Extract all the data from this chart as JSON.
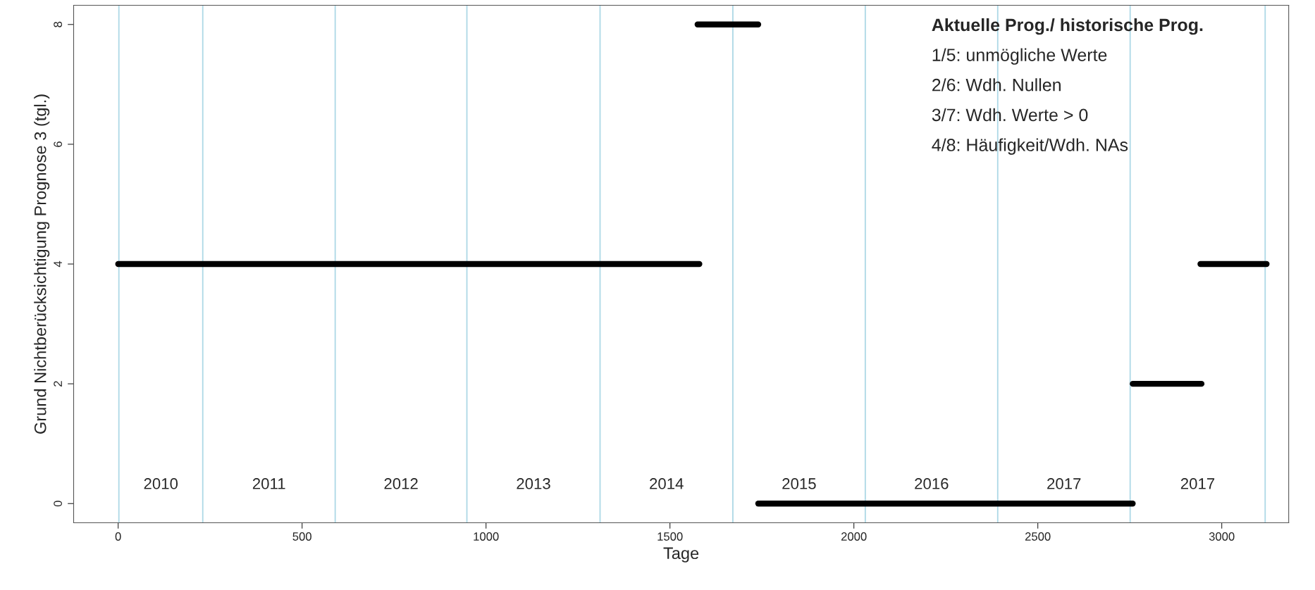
{
  "chart_data": {
    "type": "line",
    "xlabel": "Tage",
    "ylabel": "Grund Nichtberücksichtigung Prognose 3 (tgl.)",
    "xlim": [
      -121,
      3182
    ],
    "ylim": [
      -0.32,
      8.32
    ],
    "xticks": [
      0,
      500,
      1000,
      1500,
      2000,
      2500,
      3000
    ],
    "yticks": [
      0,
      2,
      4,
      6,
      8
    ],
    "grid": false,
    "marker": "none",
    "line_style": "solid",
    "series": [
      {
        "color": "#000000",
        "x": [
          0,
          1580
        ],
        "values": [
          4,
          4
        ]
      },
      {
        "color": "#000000",
        "x": [
          1575,
          1740
        ],
        "values": [
          8,
          8
        ]
      },
      {
        "color": "#000000",
        "x": [
          1740,
          2758
        ],
        "values": [
          0,
          0
        ]
      },
      {
        "color": "#000000",
        "x": [
          2758,
          2945
        ],
        "values": [
          2,
          2
        ]
      },
      {
        "color": "#000000",
        "x": [
          2942,
          3122
        ],
        "values": [
          4,
          4
        ]
      }
    ],
    "ref_lines": [
      {
        "axis": "x",
        "value": 2,
        "color": "#add8e6"
      },
      {
        "axis": "x",
        "value": 230,
        "color": "#add8e6"
      },
      {
        "axis": "x",
        "value": 590,
        "color": "#add8e6"
      },
      {
        "axis": "x",
        "value": 948,
        "color": "#add8e6"
      },
      {
        "axis": "x",
        "value": 1310,
        "color": "#add8e6"
      },
      {
        "axis": "x",
        "value": 1671,
        "color": "#add8e6"
      },
      {
        "axis": "x",
        "value": 2031,
        "color": "#add8e6"
      },
      {
        "axis": "x",
        "value": 2391,
        "color": "#add8e6"
      },
      {
        "axis": "x",
        "value": 2751,
        "color": "#add8e6"
      },
      {
        "axis": "x",
        "value": 3118,
        "color": "#add8e6"
      }
    ],
    "annotations": [
      "Aktuelle Prog./ historische Prog.",
      "1/5: unmögliche Werte",
      "2/6: Wdh. Nullen",
      "3/7: Wdh. Werte > 0",
      "4/8: Häufigkeit/Wdh. NAs",
      "2010",
      "2011",
      "2012",
      "2013",
      "2014",
      "2015",
      "2016",
      "2017",
      "2017"
    ]
  }
}
